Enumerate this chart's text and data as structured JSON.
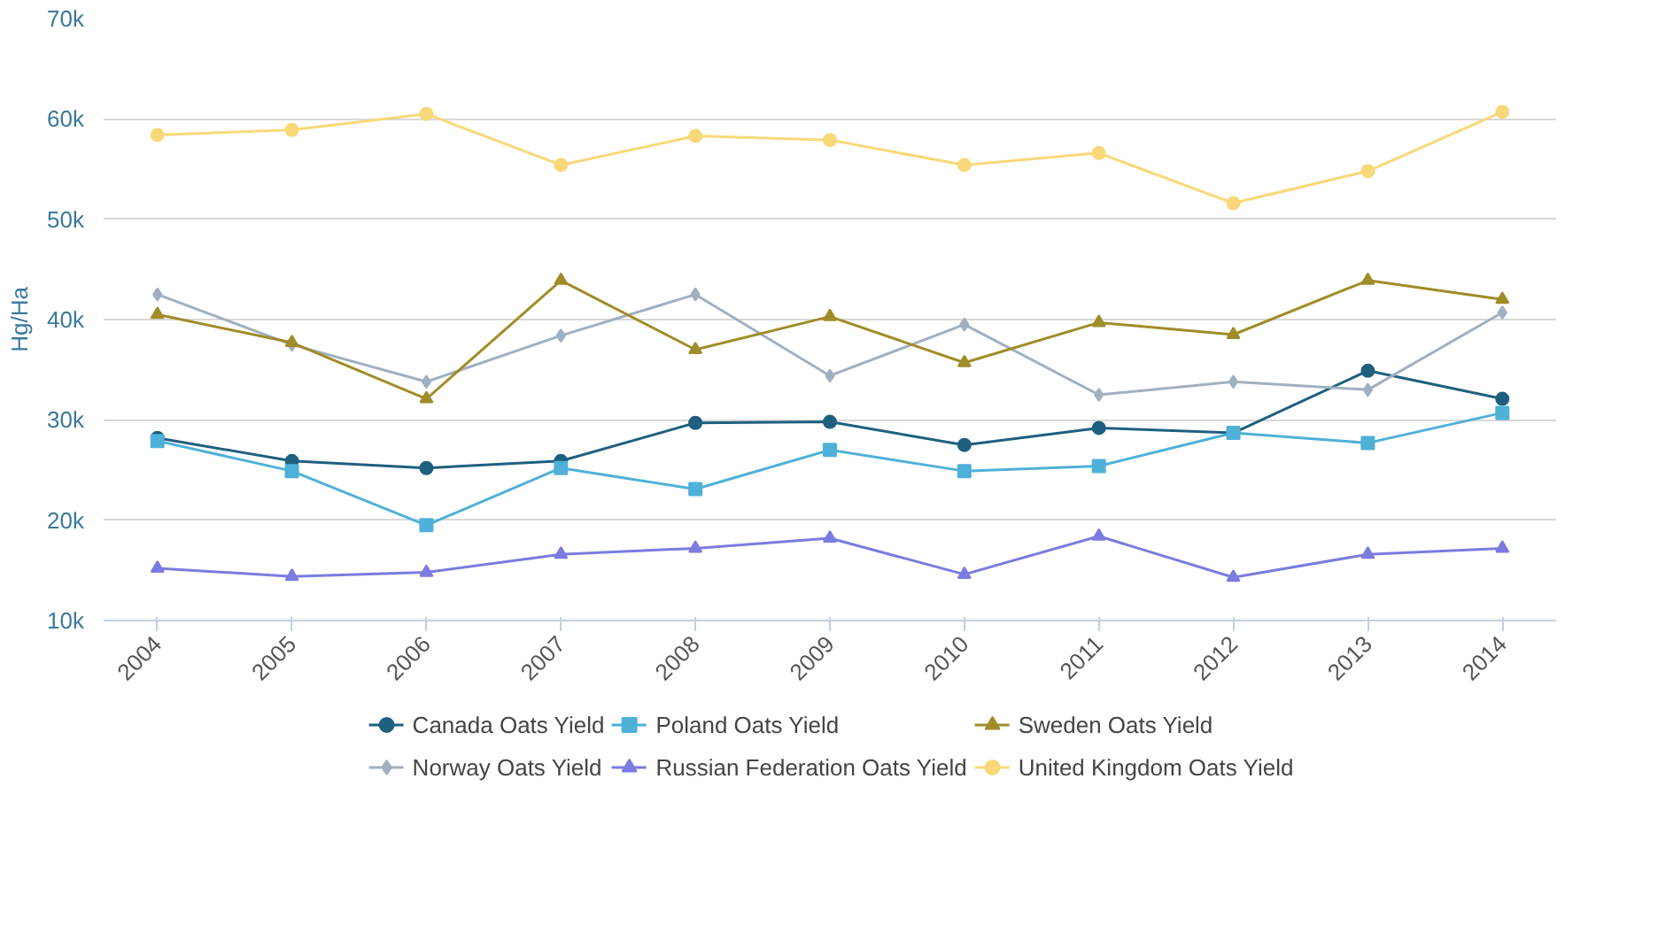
{
  "chart_data": {
    "type": "line",
    "ylabel": "Hg/Ha",
    "categories": [
      "2004",
      "2005",
      "2006",
      "2007",
      "2008",
      "2009",
      "2010",
      "2011",
      "2012",
      "2013",
      "2014"
    ],
    "ylim": [
      10000,
      70000
    ],
    "yticks": [
      {
        "value": 10000,
        "label": "10k"
      },
      {
        "value": 20000,
        "label": "20k"
      },
      {
        "value": 30000,
        "label": "30k"
      },
      {
        "value": 40000,
        "label": "40k"
      },
      {
        "value": 50000,
        "label": "50k"
      },
      {
        "value": 60000,
        "label": "60k"
      },
      {
        "value": 70000,
        "label": "70k"
      }
    ],
    "grid": "y",
    "legend": "bottom",
    "series": [
      {
        "name": "Canada Oats Yield",
        "color": "#1f5f7f",
        "marker": "circle",
        "values": [
          28200,
          25900,
          25200,
          25900,
          29700,
          29800,
          27500,
          29200,
          28700,
          34900,
          32100
        ]
      },
      {
        "name": "Norway Oats Yield",
        "color": "#a0b0c0",
        "marker": "diamond",
        "values": [
          42500,
          37500,
          33800,
          38400,
          42500,
          34400,
          39500,
          32500,
          33800,
          33000,
          40700
        ]
      },
      {
        "name": "Poland Oats Yield",
        "color": "#4fb0d8",
        "marker": "square",
        "values": [
          27900,
          24900,
          19500,
          25200,
          23100,
          27000,
          24900,
          25400,
          28700,
          27700,
          30700
        ]
      },
      {
        "name": "Russian Federation Oats Yield",
        "color": "#7b7be0",
        "marker": "triangle",
        "values": [
          15200,
          14400,
          14800,
          16600,
          17200,
          18200,
          14600,
          18400,
          14300,
          16600,
          17200
        ]
      },
      {
        "name": "Sweden Oats Yield",
        "color": "#a08c28",
        "marker": "triangle",
        "values": [
          40500,
          37700,
          32100,
          43900,
          37000,
          40300,
          35700,
          39700,
          38500,
          43900,
          42000
        ]
      },
      {
        "name": "United Kingdom Oats Yield",
        "color": "#f8d878",
        "marker": "circle",
        "values": [
          58400,
          58900,
          60500,
          55400,
          58300,
          57900,
          55400,
          56600,
          51600,
          54800,
          60700
        ]
      }
    ]
  }
}
